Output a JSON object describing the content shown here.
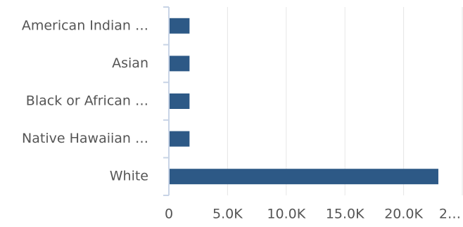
{
  "chart_data": {
    "type": "bar",
    "orientation": "horizontal",
    "categories": [
      "American Indian …",
      "Asian",
      "Black or African …",
      "Native Hawaiian …",
      "White"
    ],
    "values": [
      1700,
      1700,
      1700,
      1700,
      22900
    ],
    "color": "#2d5986",
    "xlim": [
      0,
      25000
    ],
    "xticks": [
      0,
      {
        "value": 5000,
        "label": "5.0K"
      },
      {
        "value": 10000,
        "label": "10.0K"
      },
      {
        "value": 15000,
        "label": "15.0K"
      },
      {
        "value": 20000,
        "label": "20.0K"
      },
      {
        "value": 25000,
        "label": "2…"
      }
    ],
    "grid": true
  }
}
